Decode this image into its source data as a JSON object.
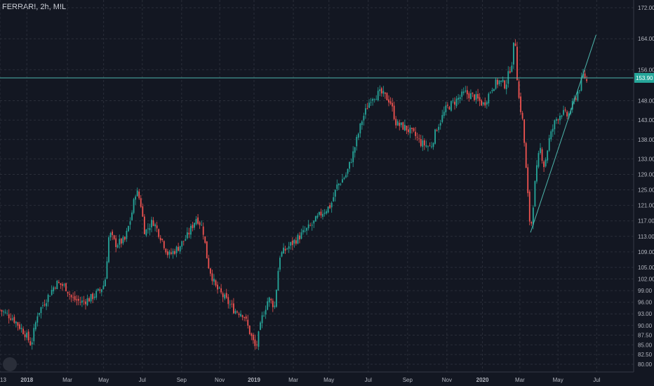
{
  "header": {
    "symbol": "FERRARI",
    "interval": "2h",
    "exchange": "MIL"
  },
  "price_label": "153.90",
  "colors": {
    "background": "#131722",
    "grid": "#2a2e39",
    "up": "#26a69a",
    "down": "#ef5350",
    "line": "#4db6ac",
    "text": "#b2b5be"
  },
  "chart_data": {
    "type": "line",
    "title": "FERRARI, 2h, MIL",
    "ylim": [
      78.0,
      174.0
    ],
    "y_ticks": [
      "172.00",
      "164.00",
      "156.00",
      "153.90",
      "148.00",
      "143.00",
      "138.00",
      "133.00",
      "129.00",
      "125.00",
      "121.00",
      "117.00",
      "113.00",
      "109.00",
      "105.00",
      "102.00",
      "99.00",
      "96.00",
      "93.00",
      "90.00",
      "87.50",
      "85.00",
      "82.50",
      "80.00"
    ],
    "x_ticks": [
      {
        "label": "13",
        "t": 0
      },
      {
        "label": "2018",
        "t": 0.043
      },
      {
        "label": "Mar",
        "t": 0.108
      },
      {
        "label": "May",
        "t": 0.166
      },
      {
        "label": "Jul",
        "t": 0.228
      },
      {
        "label": "Sep",
        "t": 0.291
      },
      {
        "label": "Nov",
        "t": 0.352
      },
      {
        "label": "2019",
        "t": 0.407
      },
      {
        "label": "Mar",
        "t": 0.47
      },
      {
        "label": "May",
        "t": 0.527
      },
      {
        "label": "Jul",
        "t": 0.59
      },
      {
        "label": "Sep",
        "t": 0.653
      },
      {
        "label": "Nov",
        "t": 0.716
      },
      {
        "label": "2020",
        "t": 0.773
      },
      {
        "label": "Mar",
        "t": 0.833
      },
      {
        "label": "May",
        "t": 0.894
      },
      {
        "label": "Jul",
        "t": 0.956
      }
    ],
    "price_path": [
      [
        0,
        94
      ],
      [
        0.02,
        92
      ],
      [
        0.04,
        88
      ],
      [
        0.05,
        85
      ],
      [
        0.06,
        93
      ],
      [
        0.075,
        97
      ],
      [
        0.09,
        101
      ],
      [
        0.105,
        100
      ],
      [
        0.115,
        97
      ],
      [
        0.13,
        96
      ],
      [
        0.145,
        97
      ],
      [
        0.16,
        99
      ],
      [
        0.168,
        101
      ],
      [
        0.175,
        114
      ],
      [
        0.185,
        111
      ],
      [
        0.2,
        112
      ],
      [
        0.21,
        118
      ],
      [
        0.218,
        125
      ],
      [
        0.225,
        122
      ],
      [
        0.232,
        114
      ],
      [
        0.245,
        117
      ],
      [
        0.26,
        112
      ],
      [
        0.27,
        108
      ],
      [
        0.285,
        110
      ],
      [
        0.3,
        113
      ],
      [
        0.315,
        118
      ],
      [
        0.325,
        115
      ],
      [
        0.333,
        106
      ],
      [
        0.345,
        100
      ],
      [
        0.36,
        97
      ],
      [
        0.375,
        94
      ],
      [
        0.39,
        93
      ],
      [
        0.405,
        86
      ],
      [
        0.41,
        84
      ],
      [
        0.42,
        92
      ],
      [
        0.43,
        97
      ],
      [
        0.44,
        95
      ],
      [
        0.448,
        108
      ],
      [
        0.46,
        110
      ],
      [
        0.48,
        113
      ],
      [
        0.5,
        116
      ],
      [
        0.515,
        119
      ],
      [
        0.53,
        121
      ],
      [
        0.54,
        126
      ],
      [
        0.555,
        129
      ],
      [
        0.565,
        134
      ],
      [
        0.58,
        143
      ],
      [
        0.595,
        149
      ],
      [
        0.61,
        150
      ],
      [
        0.625,
        148
      ],
      [
        0.635,
        142
      ],
      [
        0.65,
        141
      ],
      [
        0.665,
        139
      ],
      [
        0.675,
        137
      ],
      [
        0.69,
        136
      ],
      [
        0.7,
        141
      ],
      [
        0.715,
        146
      ],
      [
        0.73,
        148
      ],
      [
        0.745,
        150
      ],
      [
        0.76,
        149
      ],
      [
        0.775,
        147
      ],
      [
        0.79,
        152
      ],
      [
        0.8,
        153
      ],
      [
        0.81,
        152
      ],
      [
        0.82,
        158
      ],
      [
        0.825,
        165
      ],
      [
        0.83,
        150
      ],
      [
        0.838,
        142
      ],
      [
        0.845,
        125
      ],
      [
        0.85,
        114
      ],
      [
        0.858,
        128
      ],
      [
        0.865,
        136
      ],
      [
        0.872,
        131
      ],
      [
        0.88,
        138
      ],
      [
        0.89,
        143
      ],
      [
        0.9,
        145
      ],
      [
        0.91,
        144
      ],
      [
        0.92,
        148
      ],
      [
        0.93,
        152
      ],
      [
        0.935,
        155
      ],
      [
        0.94,
        153
      ]
    ],
    "horizontal_line": 153.9,
    "trendline": [
      [
        0.85,
        114
      ],
      [
        0.955,
        165
      ]
    ]
  }
}
